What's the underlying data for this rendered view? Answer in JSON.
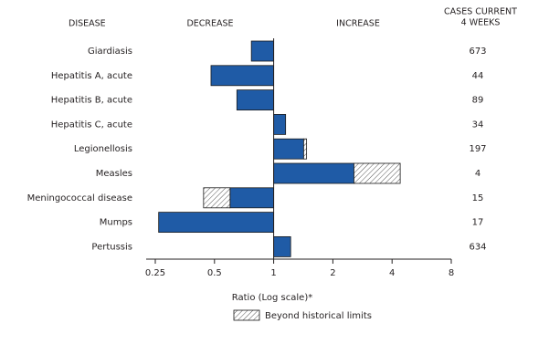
{
  "chart_data": {
    "type": "bar",
    "column_headers": {
      "disease": "DISEASE",
      "decrease": "DECREASE",
      "increase": "INCREASE",
      "cases": [
        "CASES CURRENT",
        "4 WEEKS"
      ]
    },
    "categories": [
      "Giardiasis",
      "Hepatitis A, acute",
      "Hepatitis B, acute",
      "Hepatitis C, acute",
      "Legionellosis",
      "Measles",
      "Meningococcal disease",
      "Mumps",
      "Pertussis"
    ],
    "series": [
      {
        "color": "#1f5ba6",
        "values": [
          0.77,
          0.48,
          0.65,
          1.15,
          1.42,
          2.56,
          0.6,
          0.26,
          1.22
        ]
      },
      {
        "name": "Beyond historical limits",
        "color": "#ffffff",
        "values": [
          null,
          null,
          null,
          null,
          1.47,
          4.4,
          0.44,
          null,
          null
        ]
      }
    ],
    "cases_current_4_weeks": [
      673,
      44,
      89,
      34,
      197,
      4,
      15,
      17,
      634
    ],
    "xlabel": "Ratio (Log scale)*",
    "xscale": "log",
    "xlim": [
      0.25,
      8
    ],
    "xticks": [
      0.25,
      0.5,
      1,
      2,
      4,
      8
    ],
    "baseline": 1
  }
}
